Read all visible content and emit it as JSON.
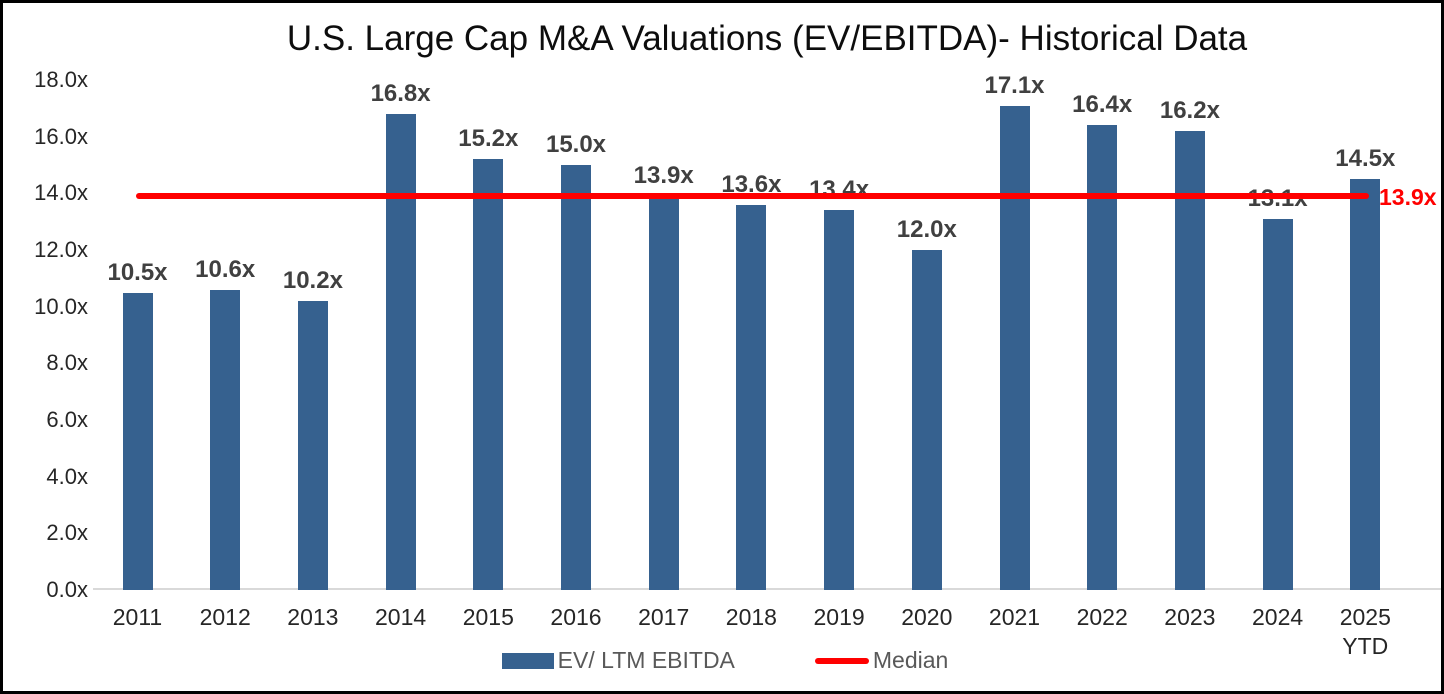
{
  "chart_data": {
    "type": "bar",
    "title": "U.S. Large Cap M&A Valuations (EV/EBITDA)- Historical Data",
    "categories": [
      "2011",
      "2012",
      "2013",
      "2014",
      "2015",
      "2016",
      "2017",
      "2018",
      "2019",
      "2020",
      "2021",
      "2022",
      "2023",
      "2024",
      "2025 YTD"
    ],
    "x_tick_labels": [
      [
        "2011"
      ],
      [
        "2012"
      ],
      [
        "2013"
      ],
      [
        "2014"
      ],
      [
        "2015"
      ],
      [
        "2016"
      ],
      [
        "2017"
      ],
      [
        "2018"
      ],
      [
        "2019"
      ],
      [
        "2020"
      ],
      [
        "2021"
      ],
      [
        "2022"
      ],
      [
        "2023"
      ],
      [
        "2024"
      ],
      [
        "2025",
        "YTD"
      ]
    ],
    "series": [
      {
        "name": "EV/ LTM EBITDA",
        "values": [
          10.5,
          10.6,
          10.2,
          16.8,
          15.2,
          15.0,
          13.9,
          13.6,
          13.4,
          12.0,
          17.1,
          16.4,
          16.2,
          13.1,
          14.5
        ],
        "data_labels": [
          "10.5x",
          "10.6x",
          "10.2x",
          "16.8x",
          "15.2x",
          "15.0x",
          "13.9x",
          "13.6x",
          "13.4x",
          "12.0x",
          "17.1x",
          "16.4x",
          "16.2x",
          "13.1x",
          "14.5x"
        ]
      }
    ],
    "median": {
      "name": "Median",
      "value": 13.9,
      "label": "13.9x"
    },
    "y_axis": {
      "min": 0,
      "max": 18,
      "step": 2,
      "tick_labels": [
        "18.0x",
        "16.0x",
        "14.0x",
        "12.0x",
        "10.0x",
        "8.0x",
        "6.0x",
        "4.0x",
        "2.0x",
        "0.0x"
      ]
    },
    "grid": false,
    "legend_position": "bottom",
    "colors": {
      "bar": "#36618F",
      "median_line": "#FF0000",
      "median_label": "#FF0000",
      "data_label": "#404040",
      "axis_text": "#262626",
      "legend_text": "#595959",
      "axis_line": "#D9D9D9",
      "frame_border": "#000000"
    }
  }
}
